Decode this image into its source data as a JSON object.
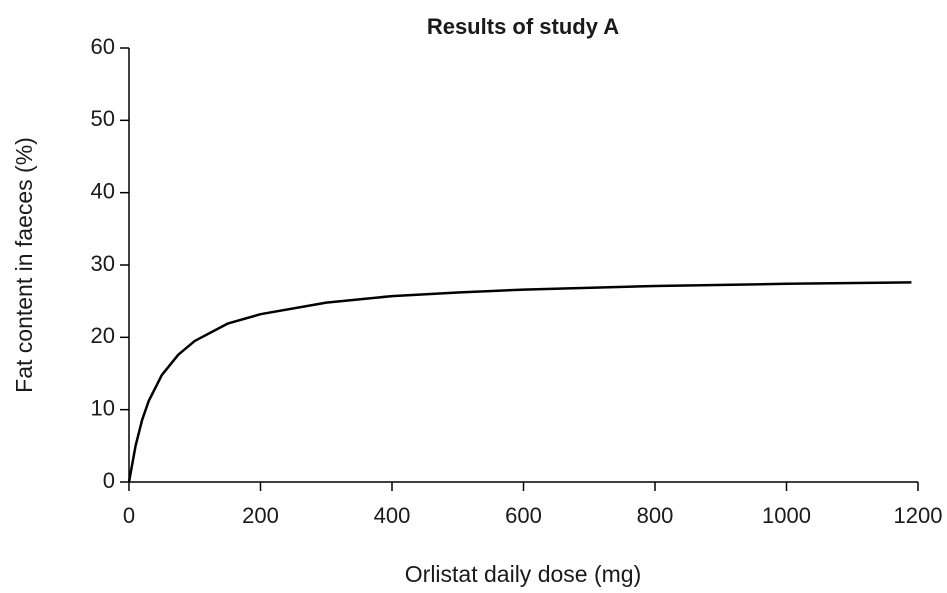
{
  "chart_data": {
    "type": "line",
    "title": "Results of study A",
    "x_label": "Orlistat daily dose (mg)",
    "y_label": "Fat content in faeces (%)",
    "series": [
      {
        "name": "Study A",
        "color": "#000000",
        "x": [
          0,
          10,
          20,
          30,
          50,
          75,
          100,
          150,
          200,
          300,
          400,
          500,
          600,
          800,
          1000,
          1190
        ],
        "values": [
          0,
          5.0,
          8.6,
          11.2,
          14.8,
          17.6,
          19.5,
          21.9,
          23.2,
          24.8,
          25.7,
          26.2,
          26.6,
          27.1,
          27.4,
          27.6
        ]
      }
    ],
    "xlim": [
      0,
      1200
    ],
    "xticks": [
      0,
      200,
      400,
      600,
      800,
      1000,
      1200
    ],
    "ylim": [
      0,
      60
    ],
    "yticks": [
      0,
      10,
      20,
      30,
      40,
      50,
      60
    ],
    "grid": false,
    "legend": false
  }
}
